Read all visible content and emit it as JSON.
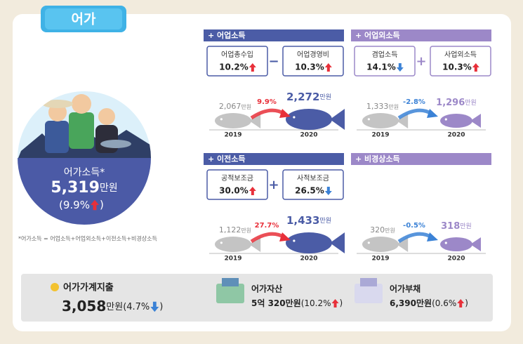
{
  "tab": "어가",
  "center": {
    "label": "어가소득*",
    "value": "5,319",
    "unit": "만원",
    "change": "(9.9%",
    "change_end": ")",
    "direction": "up"
  },
  "footnote": "*어가소득 = 어업소득+어업외소득+이전소득+비경상소득",
  "panels": [
    {
      "title": "+ 어업소득",
      "theme": "blue",
      "operator": "−",
      "boxes": [
        {
          "label": "어업총수입",
          "change": "10.2%",
          "direction": "up"
        },
        {
          "label": "어업경영비",
          "change": "10.3%",
          "direction": "up"
        }
      ],
      "from": {
        "value": "2,067",
        "unit": "만원",
        "year": "2019"
      },
      "rate": "9.9%",
      "rate_direction": "up",
      "to": {
        "value": "2,272",
        "unit": "만원",
        "year": "2020"
      }
    },
    {
      "title": "+ 어업외소득",
      "theme": "purple",
      "operator": "+",
      "boxes": [
        {
          "label": "겸업소득",
          "change": "14.1%",
          "direction": "down"
        },
        {
          "label": "사업외소득",
          "change": "10.3%",
          "direction": "up"
        }
      ],
      "from": {
        "value": "1,333",
        "unit": "만원",
        "year": "2019"
      },
      "rate": "-2.8%",
      "rate_direction": "down",
      "to": {
        "value": "1,296",
        "unit": "만원",
        "year": "2020"
      }
    },
    {
      "title": "+ 이전소득",
      "theme": "blue",
      "operator": "+",
      "boxes": [
        {
          "label": "공적보조금",
          "change": "30.0%",
          "direction": "up"
        },
        {
          "label": "사적보조금",
          "change": "26.5%",
          "direction": "down"
        }
      ],
      "from": {
        "value": "1,122",
        "unit": "만원",
        "year": "2019"
      },
      "rate": "27.7%",
      "rate_direction": "up",
      "to": {
        "value": "1,433",
        "unit": "만원",
        "year": "2020"
      }
    },
    {
      "title": "+ 비경상소득",
      "theme": "purple",
      "from": {
        "value": "320",
        "unit": "만원",
        "year": "2019"
      },
      "rate": "-0.5%",
      "rate_direction": "down",
      "to": {
        "value": "318",
        "unit": "만원",
        "year": "2020"
      }
    }
  ],
  "bottom": [
    {
      "title": "어가가계지출",
      "value": "3,058",
      "unit": "만원",
      "change": "(4.7%",
      "change_end": ")",
      "direction": "down"
    },
    {
      "title": "어가자산",
      "value": "5억 320",
      "unit": "만원",
      "change": "(10.2%",
      "change_end": ")",
      "direction": "up"
    },
    {
      "title": "어가부채",
      "value": "6,390",
      "unit": "만원",
      "change": "(0.6%",
      "change_end": ")",
      "direction": "up"
    }
  ]
}
